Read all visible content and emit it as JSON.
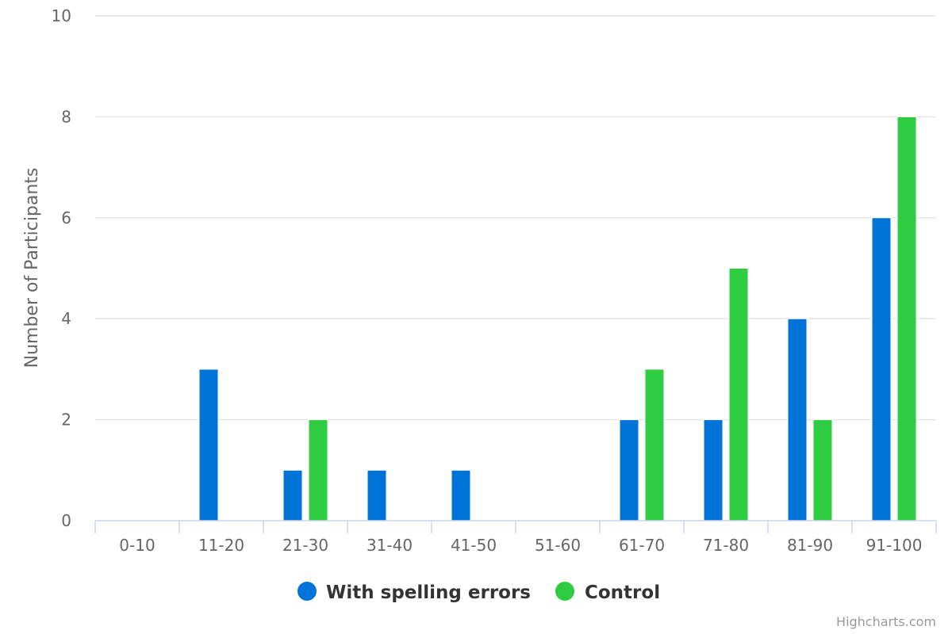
{
  "chart_data": {
    "type": "bar",
    "title": "",
    "xlabel": "",
    "ylabel": "Number of Participants",
    "ylim": [
      0,
      10
    ],
    "yticks": [
      0,
      2,
      4,
      6,
      8,
      10
    ],
    "grid": true,
    "categories": [
      "0-10",
      "11-20",
      "21-30",
      "31-40",
      "41-50",
      "51-60",
      "61-70",
      "71-80",
      "81-90",
      "91-100"
    ],
    "series": [
      {
        "name": "With spelling errors",
        "color": "#0073d9",
        "values": [
          0,
          3,
          1,
          1,
          1,
          0,
          2,
          2,
          4,
          6
        ]
      },
      {
        "name": "Control",
        "color": "#2ecc40",
        "values": [
          0,
          0,
          2,
          0,
          0,
          0,
          3,
          5,
          2,
          8
        ]
      }
    ],
    "legend_position": "bottom-center"
  },
  "credits": "Highcharts.com"
}
